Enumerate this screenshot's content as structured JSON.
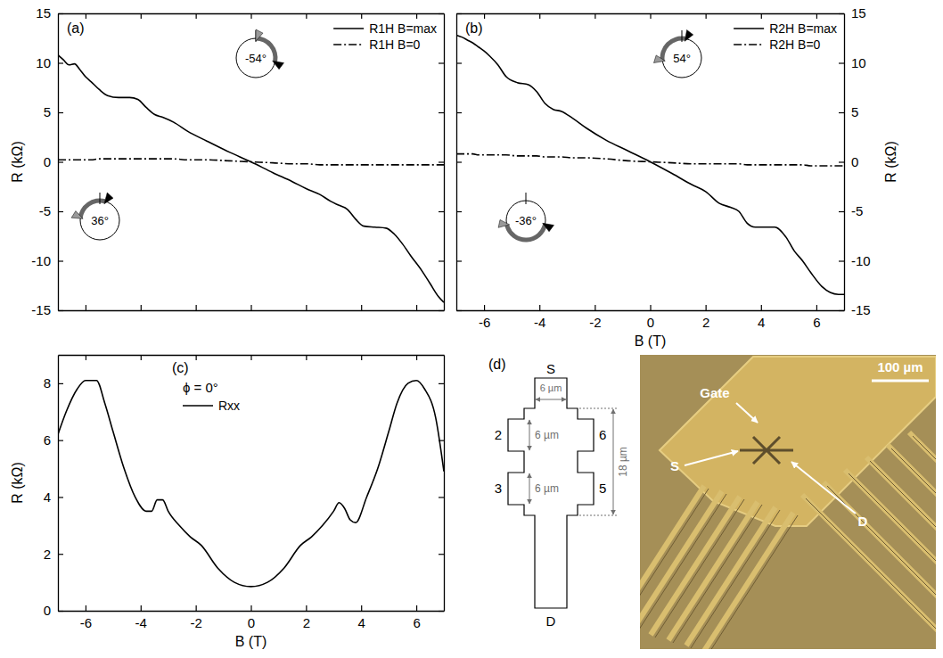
{
  "chart_data": [
    {
      "type": "line",
      "panel_label": "(a)",
      "ylabel": "R (kΩ)",
      "xlim": [
        -7,
        7
      ],
      "xticks": [
        -6,
        -4,
        -2,
        0,
        2,
        4,
        6
      ],
      "ylim": [
        -15,
        15
      ],
      "yticks": [
        -15,
        -10,
        -5,
        0,
        5,
        10,
        15
      ],
      "tick_labels": "y",
      "grid": false,
      "legend": "upper right",
      "annotations": [
        "-54°",
        "36°"
      ],
      "x": [
        -7,
        -6.8,
        -6.6,
        -6.4,
        -6.2,
        -6,
        -5.8,
        -5.5,
        -5.2,
        -4.8,
        -4.4,
        -4.1,
        -3.8,
        -3.5,
        -3.2,
        -2.8,
        -2.3,
        -1.6,
        -0.8,
        0,
        0.8,
        1.5,
        2,
        2.5,
        2.9,
        3.2,
        3.5,
        3.8,
        4.1,
        4.5,
        4.9,
        5.2,
        5.5,
        5.8,
        6.2,
        6.5,
        6.8,
        7
      ],
      "series": [
        {
          "name": "R1H B=max",
          "color": "#000000",
          "line_style": "solid",
          "values": [
            10.8,
            10.3,
            9.8,
            9.9,
            9.3,
            8.6,
            8.1,
            7.3,
            6.7,
            6.5,
            6.5,
            6.3,
            5.5,
            4.8,
            4.5,
            4.0,
            3.1,
            2.1,
            1.0,
            0,
            -1.1,
            -2.0,
            -2.7,
            -3.3,
            -4.0,
            -4.4,
            -4.8,
            -5.8,
            -6.5,
            -6.6,
            -6.7,
            -7.3,
            -8.3,
            -9.5,
            -11.0,
            -12.3,
            -13.6,
            -14.2
          ]
        },
        {
          "name": "R1H B=0",
          "color": "#000000",
          "line_style": "dash-dot",
          "values": [
            0.2,
            0.2,
            0.2,
            0.2,
            0.2,
            0.2,
            0.2,
            0.3,
            0.3,
            0.3,
            0.3,
            0.3,
            0.3,
            0.3,
            0.3,
            0.3,
            0.2,
            0.2,
            0.1,
            0,
            -0.1,
            -0.2,
            -0.2,
            -0.3,
            -0.3,
            -0.3,
            -0.3,
            -0.3,
            -0.3,
            -0.3,
            -0.3,
            -0.3,
            -0.3,
            -0.3,
            -0.3,
            -0.3,
            -0.3,
            -0.3
          ]
        }
      ]
    },
    {
      "type": "line",
      "panel_label": "(b)",
      "xlabel": "B (T)",
      "ylabel": "R (kΩ)",
      "xlim": [
        -7,
        7
      ],
      "xticks": [
        -6,
        -4,
        -2,
        0,
        2,
        4,
        6
      ],
      "ylim": [
        -15,
        15
      ],
      "yticks": [
        -15,
        -10,
        -5,
        0,
        5,
        10,
        15
      ],
      "tick_labels": true,
      "grid": false,
      "legend": "upper right",
      "annotations": [
        "54°",
        "-36°"
      ],
      "x": [
        -7,
        -6.8,
        -6.6,
        -6.4,
        -6.2,
        -6,
        -5.8,
        -5.5,
        -5.2,
        -4.8,
        -4.4,
        -4.1,
        -3.8,
        -3.5,
        -3.2,
        -2.8,
        -2.3,
        -1.6,
        -0.8,
        0,
        0.8,
        1.5,
        2,
        2.5,
        2.9,
        3.2,
        3.5,
        3.8,
        4.1,
        4.5,
        4.9,
        5.2,
        5.5,
        5.8,
        6.2,
        6.5,
        6.8,
        7
      ],
      "series": [
        {
          "name": "R2H B=max",
          "color": "#000000",
          "line_style": "solid",
          "values": [
            12.8,
            12.6,
            12.3,
            12.0,
            11.6,
            11.2,
            10.7,
            9.8,
            8.6,
            8.0,
            7.8,
            7.1,
            5.9,
            5.3,
            5.1,
            4.4,
            3.4,
            2.2,
            1.1,
            0,
            -1.2,
            -2.3,
            -3.0,
            -4.2,
            -4.6,
            -5.0,
            -6.2,
            -6.6,
            -6.6,
            -6.6,
            -7.6,
            -9.0,
            -10.0,
            -11.2,
            -12.6,
            -13.2,
            -13.4,
            -13.4
          ]
        },
        {
          "name": "R2H B=0",
          "color": "#000000",
          "line_style": "dash-dot",
          "values": [
            0.8,
            0.8,
            0.8,
            0.8,
            0.7,
            0.7,
            0.7,
            0.7,
            0.7,
            0.6,
            0.6,
            0.6,
            0.5,
            0.5,
            0.5,
            0.4,
            0.4,
            0.3,
            0.1,
            0,
            -0.1,
            -0.2,
            -0.2,
            -0.2,
            -0.2,
            -0.2,
            -0.3,
            -0.3,
            -0.3,
            -0.3,
            -0.3,
            -0.3,
            -0.3,
            -0.4,
            -0.4,
            -0.4,
            -0.4,
            -0.4
          ]
        }
      ]
    },
    {
      "type": "line",
      "panel_label": "(c)",
      "xlabel": "B (T)",
      "ylabel": "R (kΩ)",
      "xlim": [
        -7,
        7
      ],
      "xticks": [
        -6,
        -4,
        -2,
        0,
        2,
        4,
        6
      ],
      "ylim": [
        0,
        9
      ],
      "yticks": [
        0,
        2,
        4,
        6,
        8
      ],
      "tick_labels": true,
      "grid": false,
      "legend": "upper center",
      "annotations": [
        "ϕ = 0°"
      ],
      "x": [
        -7,
        -6.7,
        -6.3,
        -6,
        -5.6,
        -5.3,
        -5,
        -4.6,
        -4.2,
        -3.8,
        -3.6,
        -3.4,
        -3.2,
        -3,
        -2.6,
        -2.2,
        -1.8,
        -1.2,
        -0.6,
        0,
        0.6,
        1.2,
        1.8,
        2.2,
        2.6,
        3,
        3.2,
        3.4,
        3.6,
        3.8,
        4.2,
        4.6,
        5,
        5.3,
        5.7,
        6,
        6.3,
        6.7,
        7
      ],
      "series": [
        {
          "name": "Rxx",
          "color": "#000000",
          "line_style": "solid",
          "values": [
            6.2,
            7.0,
            7.8,
            8.1,
            8.1,
            7.3,
            6.3,
            5.0,
            4.0,
            3.5,
            3.5,
            3.9,
            3.9,
            3.5,
            3.0,
            2.6,
            2.3,
            1.5,
            1.0,
            0.85,
            1.0,
            1.5,
            2.3,
            2.6,
            3.0,
            3.5,
            3.8,
            3.6,
            3.2,
            3.1,
            4.0,
            5.0,
            6.3,
            7.3,
            8.0,
            8.1,
            7.8,
            6.8,
            4.9
          ]
        }
      ]
    }
  ],
  "diagram": {
    "panel_label": "(d)",
    "schematic": {
      "source": "S",
      "drain": "D",
      "contacts": [
        "2",
        "3",
        "5",
        "6"
      ],
      "dimensions": {
        "source_width": "6 µm",
        "contact_2_width": "6 µm",
        "contact_3_width": "6 µm",
        "contact_span": "18 µm"
      }
    },
    "photo": {
      "labels": {
        "gate": "Gate",
        "source": "S",
        "drain": "D"
      },
      "scale_bar": "100 µm"
    }
  }
}
